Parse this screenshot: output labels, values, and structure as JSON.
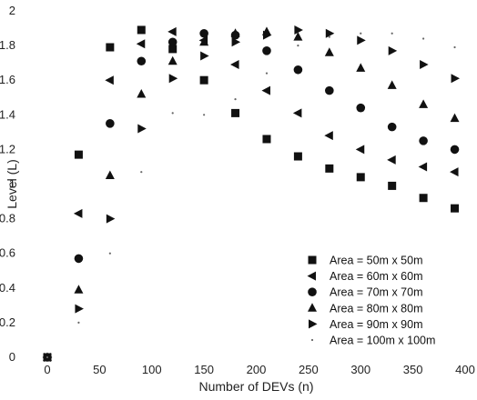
{
  "chart_data": {
    "type": "scatter",
    "title": "",
    "xlabel": "Number of DEVs (n)",
    "ylabel": "Level (L)",
    "xlim": [
      0,
      400
    ],
    "ylim": [
      0,
      2
    ],
    "xticks": [
      0,
      50,
      100,
      150,
      200,
      250,
      300,
      350,
      400
    ],
    "yticks": [
      0,
      0.2,
      0.4,
      0.6,
      0.8,
      1,
      1.2,
      1.4,
      1.6,
      1.8,
      2
    ],
    "ytick_labels": [
      "0",
      "0.2",
      "0.4",
      "0.6",
      "0.8",
      "1",
      "1.2",
      "1.4",
      "1.6",
      "1.8",
      "2"
    ],
    "x": [
      0,
      30,
      60,
      90,
      120,
      150,
      180,
      210,
      240,
      270,
      300,
      330,
      360,
      390
    ],
    "grid": false,
    "legend_position": "bottom-right",
    "series": [
      {
        "name": "Area = 50m x 50m",
        "marker": "square",
        "values": [
          0,
          1.17,
          1.79,
          1.89,
          1.78,
          1.6,
          1.41,
          1.26,
          1.16,
          1.09,
          1.04,
          0.99,
          0.92,
          0.86
        ]
      },
      {
        "name": "Area = 60m x 60m",
        "marker": "triangle-left",
        "values": [
          0,
          0.83,
          1.6,
          1.81,
          1.88,
          1.83,
          1.69,
          1.54,
          1.41,
          1.28,
          1.2,
          1.14,
          1.1,
          1.07
        ]
      },
      {
        "name": "Area = 70m x 70m",
        "marker": "circle",
        "values": [
          0,
          0.57,
          1.35,
          1.71,
          1.82,
          1.87,
          1.86,
          1.77,
          1.66,
          1.54,
          1.44,
          1.33,
          1.25,
          1.2
        ]
      },
      {
        "name": "Area = 80m x 80m",
        "marker": "triangle-up",
        "values": [
          0,
          0.39,
          1.05,
          1.52,
          1.71,
          1.82,
          1.87,
          1.88,
          1.85,
          1.76,
          1.67,
          1.57,
          1.46,
          1.38
        ]
      },
      {
        "name": "Area = 90m x 90m",
        "marker": "triangle-right",
        "values": [
          0,
          0.28,
          0.8,
          1.32,
          1.61,
          1.74,
          1.82,
          1.86,
          1.89,
          1.87,
          1.83,
          1.77,
          1.69,
          1.61
        ]
      },
      {
        "name": "Area = 100m x 100m",
        "marker": "dot",
        "values": [
          0,
          0.2,
          0.6,
          1.07,
          1.41,
          1.4,
          1.49,
          1.64,
          1.8,
          1.85,
          1.87,
          1.87,
          1.84,
          1.79
        ]
      }
    ]
  }
}
